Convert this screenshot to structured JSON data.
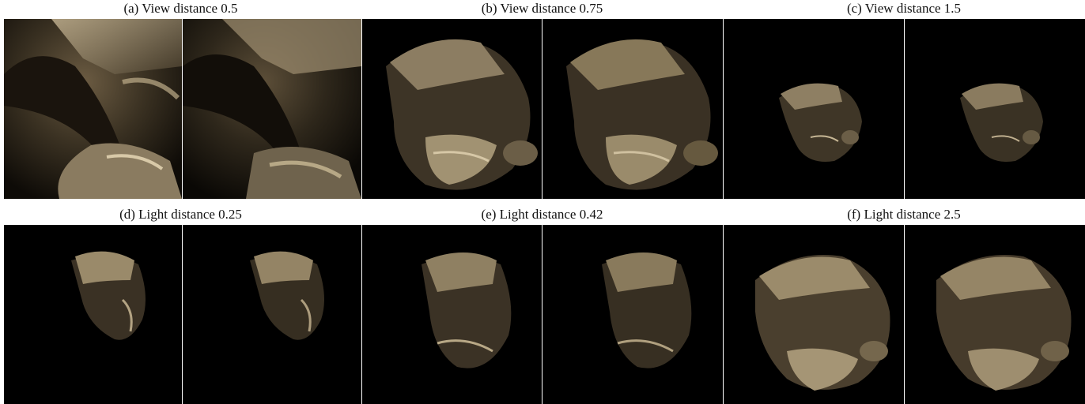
{
  "figure": {
    "captions": [
      "(a) View distance 0.5",
      "(b) View distance 0.75",
      "(c) View distance 1.5",
      "(d) Light distance 0.25",
      "(e) Light distance 0.42",
      "(f) Light distance 2.5"
    ]
  }
}
